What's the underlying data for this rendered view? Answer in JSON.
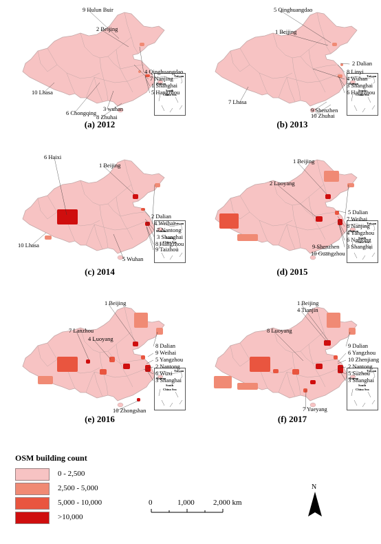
{
  "colors": {
    "c1": "#f7c3c3",
    "c2": "#f08a74",
    "c3": "#e9553f",
    "c4": "#cf0e0e",
    "border": "#c4a8a8",
    "water": "#ffffff"
  },
  "inset": {
    "taiwan": "Taiwan",
    "hainan": "Hainan",
    "scs1": "South",
    "scs2": "China Sea"
  },
  "panels": [
    {
      "caption": "(a) 2012",
      "labels": [
        "9 Hulun Buir",
        "2 Beijing",
        "4 Qinghuangdao",
        "7 Nanjing",
        "1 Shanghai",
        "5 Hangzhou",
        "10 Lhasa",
        "6 Chongqing",
        "3 wuhan",
        "8 Zhuhai"
      ]
    },
    {
      "caption": "(b) 2013",
      "labels": [
        "5 Qinghuangdao",
        "1 Beijing",
        "2 Dalian",
        "8 Linyi",
        "4 Wuhan",
        "3 Shanghai",
        "6 Hangzhou",
        "7 Lhasa",
        "9 Shenzhen",
        "10 Zhuhai"
      ]
    },
    {
      "caption": "(c) 2014",
      "labels": [
        "6 Haixi",
        "1 Beijing",
        "2 Dalian",
        "4 Weihai",
        "7 Nantong",
        "3 Shanghai",
        "8 Hangzhou",
        "9 Taizhou",
        "10 Lhasa",
        "5 Wuhan"
      ]
    },
    {
      "caption": "(d) 2015",
      "labels": [
        "1 Beijing",
        "2 Luoyang",
        "5 Dalian",
        "7 Weihai",
        "8 Nanjing",
        "4 Yangzhou",
        "6 Nantong",
        "3 Shanghai",
        "9 Shenzhen",
        "10 Guangzhou"
      ]
    },
    {
      "caption": "(e) 2016",
      "labels": [
        "1 Beijing",
        "7 Lanzhou",
        "4 Luoyang",
        "8 Dalian",
        "9 Weihai",
        "5 Yangzhou",
        "2 Nantong",
        "6 Wuxi",
        "3 Shanghai",
        "10 Zhongshan"
      ]
    },
    {
      "caption": "(f) 2017",
      "labels": [
        "1 Beijing",
        "4 Tianjin",
        "8 Luoyang",
        "9 Dalian",
        "6 Yangzhou",
        "10 Zhenjiang",
        "2 Nantong",
        "5 Suzhou",
        "3 Shanghai",
        "7 Yueyang"
      ]
    }
  ],
  "legend": {
    "title": "OSM building count",
    "items": [
      {
        "label": "0 - 2,500",
        "color": "#f7c3c3"
      },
      {
        "label": "2,500 - 5,000",
        "color": "#f08a74"
      },
      {
        "label": "5,000 - 10,000",
        "color": "#e9553f"
      },
      {
        "label": ">10,000",
        "color": "#cf0e0e"
      }
    ]
  },
  "scale": {
    "t0": "0",
    "t1": "1,000",
    "t2": "2,000 km"
  },
  "north": "N"
}
